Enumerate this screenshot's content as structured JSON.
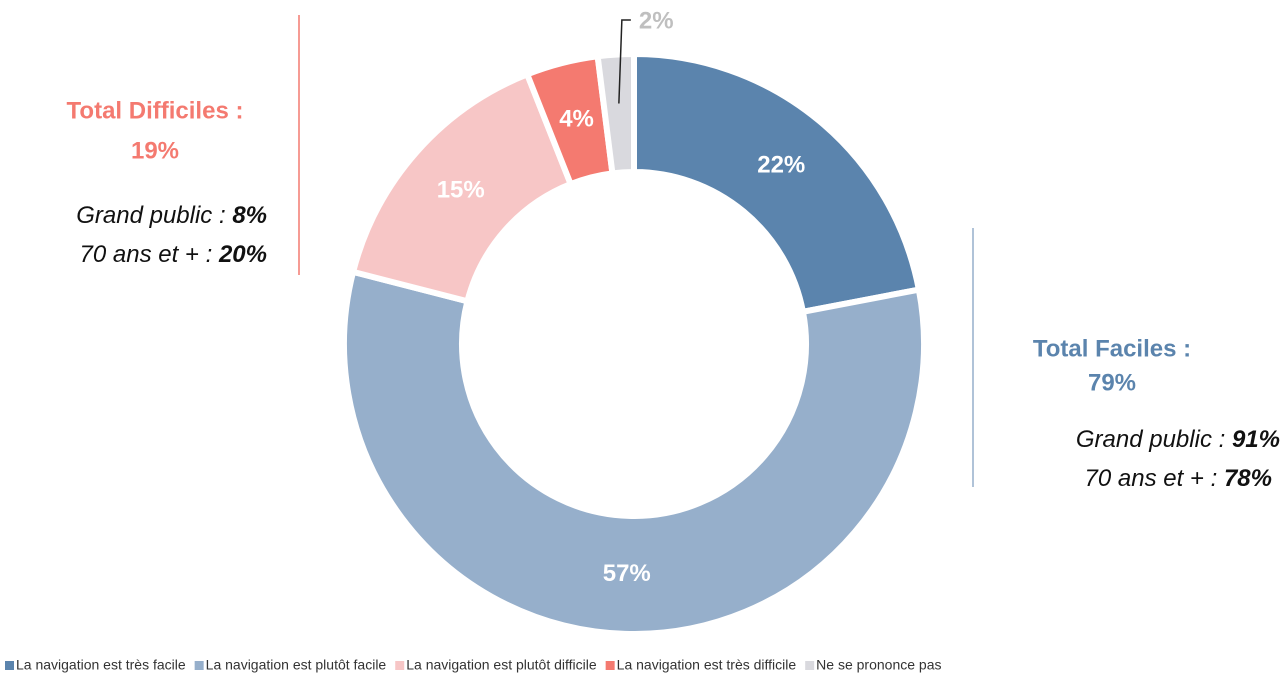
{
  "chart_data": {
    "type": "pie",
    "categories": [
      "La navigation est très facile",
      "La navigation est plutôt facile",
      "La navigation est plutôt difficile",
      "La navigation est très difficile",
      "Ne se prononce pas"
    ],
    "values": [
      22,
      57,
      15,
      4,
      2
    ],
    "value_labels": [
      "22%",
      "57%",
      "15%",
      "4%",
      "2%"
    ],
    "colors": [
      "#5b84ad",
      "#96afcb",
      "#f7c6c6",
      "#f47a70",
      "#d9d9de"
    ],
    "legend": "bottom",
    "annotations": [
      {
        "title": "Total Difficiles :",
        "total": "19%",
        "lines": [
          {
            "label": "Grand public : ",
            "value": "8%"
          },
          {
            "label": "70 ans et + : ",
            "value": "20%"
          }
        ]
      },
      {
        "title": "Total Faciles :",
        "total": "79%",
        "lines": [
          {
            "label": "Grand public : ",
            "value": "91%"
          },
          {
            "label": "70 ans et + : ",
            "value": "78%"
          }
        ]
      }
    ]
  }
}
